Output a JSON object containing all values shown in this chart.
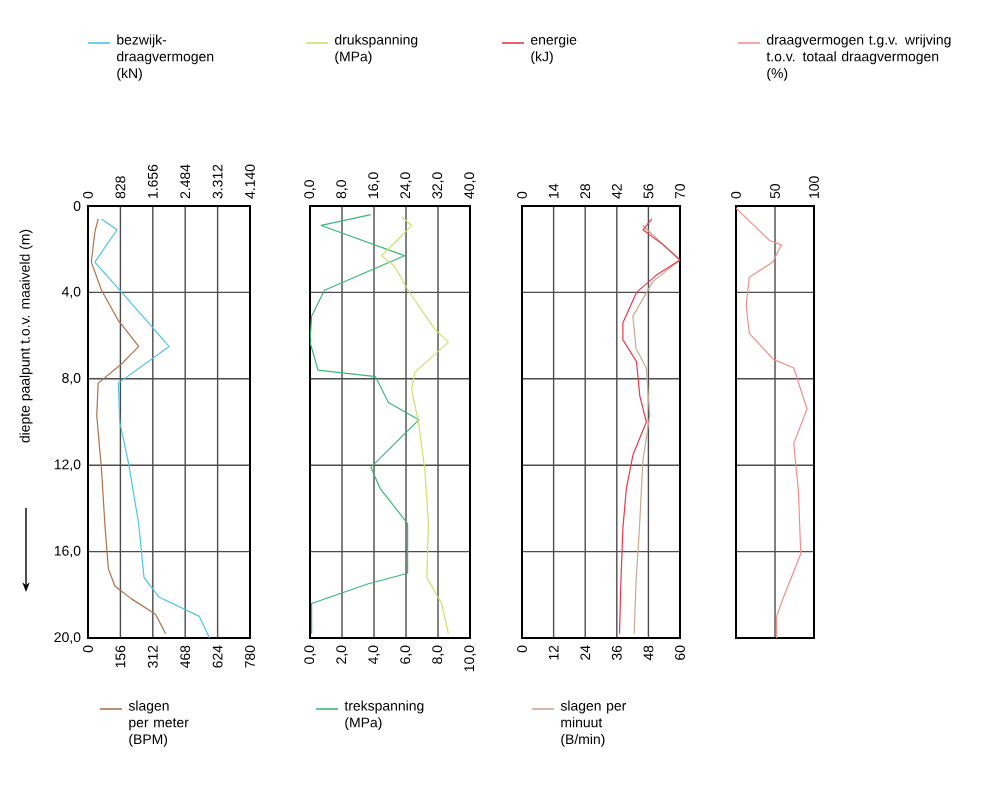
{
  "chart_data": [
    {
      "type": "line",
      "ylabel": "diepte paalpunt t.o.v. maaiveld (m)",
      "ylim": [
        20,
        0
      ],
      "yticks": [
        0,
        {
          "value": 4,
          "label": "4,0"
        },
        {
          "value": 8,
          "label": "8,0"
        },
        {
          "value": 12,
          "label": "12,0"
        },
        {
          "value": 16,
          "label": "16,0"
        },
        {
          "value": 20,
          "label": "20,0"
        }
      ],
      "xlim": [
        0,
        780
      ],
      "xticks": [
        0,
        156,
        312,
        468,
        624,
        780
      ],
      "x2lim": [
        0,
        4140
      ],
      "x2ticks": [
        0,
        828,
        {
          "value": 1656,
          "label": "1.656"
        },
        {
          "value": 2484,
          "label": "2.484"
        },
        {
          "value": 3312,
          "label": "3.312"
        },
        {
          "value": 4140,
          "label": "4.140"
        }
      ],
      "grid": true,
      "legend": "top",
      "series": [
        {
          "name": "bezwijk-draagvermogen (kN)",
          "color": "#4cc3ea",
          "axis": "x2",
          "x": [
            345,
            742,
            173,
            863,
            2070,
            776,
            811,
            1035,
            1294,
            1432,
            1811,
            2846,
            3105
          ],
          "values": [
            0.6,
            1.1,
            2.6,
            4.0,
            6.5,
            8.2,
            10.0,
            11.9,
            14.7,
            17.2,
            18.1,
            19.0,
            20.0
          ]
        },
        {
          "name": "slagen per meter (BPM)",
          "color": "#b0704a",
          "x": [
            49,
            33,
            16,
            65,
            146,
            244,
            163,
            49,
            42,
            65,
            81,
            98,
            130,
            211,
            325,
            374
          ],
          "values": [
            0.6,
            1.2,
            2.6,
            3.9,
            5.3,
            6.5,
            7.3,
            8.2,
            9.7,
            12.2,
            14.7,
            16.8,
            17.6,
            18.2,
            18.9,
            19.8
          ]
        }
      ]
    },
    {
      "type": "line",
      "ylim": [
        20,
        0
      ],
      "yticks": [
        0,
        4,
        8,
        12,
        16,
        20
      ],
      "tick_labels": "x",
      "xlim": [
        0,
        10
      ],
      "xticks": [
        {
          "value": 0,
          "label": "0,0"
        },
        {
          "value": 2,
          "label": "2,0"
        },
        {
          "value": 4,
          "label": "4,0"
        },
        {
          "value": 6,
          "label": "6,0"
        },
        {
          "value": 8,
          "label": "8,0"
        },
        {
          "value": 10,
          "label": "10,0"
        }
      ],
      "x2lim": [
        0,
        40
      ],
      "x2ticks": [
        {
          "value": 0,
          "label": "0,0"
        },
        {
          "value": 8,
          "label": "8,0"
        },
        {
          "value": 16,
          "label": "16,0"
        },
        {
          "value": 24,
          "label": "24,0"
        },
        {
          "value": 32,
          "label": "32,0"
        },
        {
          "value": 40,
          "label": "40,0"
        }
      ],
      "grid": true,
      "legend": "top",
      "series": [
        {
          "name": "drukspanning (MPa)",
          "color": "#d4dc6c",
          "axis": "x2",
          "x": [
            22.9,
            25.4,
            21.2,
            17.9,
            21.2,
            24.5,
            31.2,
            34.6,
            26.2,
            25.4,
            27.1,
            28.7,
            29.6,
            29.2,
            32.9,
            34.6
          ],
          "values": [
            0.5,
            0.9,
            1.7,
            2.3,
            2.8,
            3.9,
            5.7,
            6.3,
            7.7,
            8.5,
            10.0,
            12.2,
            14.7,
            17.2,
            18.4,
            19.8
          ]
        },
        {
          "name": "trekspanning (MPa)",
          "color": "#3cb878",
          "x": [
            3.8,
            0.7,
            5.9,
            0.9,
            0.1,
            0,
            0.5,
            4.1,
            4.9,
            6.8,
            5.7,
            3.8,
            4.4,
            6.1,
            6.1,
            3.6,
            0.1,
            0.1
          ],
          "values": [
            0.4,
            0.9,
            2.3,
            3.9,
            5.1,
            6.3,
            7.6,
            7.9,
            9.1,
            9.9,
            10.7,
            12.1,
            13.1,
            14.7,
            17.0,
            17.5,
            18.4,
            19.8
          ]
        }
      ]
    },
    {
      "type": "line",
      "ylim": [
        20,
        0
      ],
      "yticks": [
        0,
        4,
        8,
        12,
        16,
        20
      ],
      "tick_labels": "x",
      "xlim": [
        0,
        60
      ],
      "xticks": [
        0,
        12,
        24,
        36,
        48,
        60
      ],
      "x2lim": [
        0,
        70
      ],
      "x2ticks": [
        0,
        14,
        28,
        42,
        56,
        70
      ],
      "grid": true,
      "legend": "top",
      "series": [
        {
          "name": "energie (kJ)",
          "color": "#e8384a",
          "axis": "x2",
          "x": [
            57.5,
            53.6,
            62.6,
            70,
            59.6,
            50.7,
            44.7,
            44.7,
            50.7,
            52.2,
            55.1,
            49.2,
            46.2,
            44.7,
            43.8,
            43.2
          ],
          "values": [
            0.6,
            1.1,
            1.8,
            2.5,
            3.2,
            4.0,
            5.4,
            6.2,
            7.2,
            8.8,
            10.0,
            11.5,
            13.1,
            14.9,
            17.4,
            19.8
          ]
        },
        {
          "name": "slagen per minuut (B/min)",
          "color": "#c8a890",
          "x": [
            45.9,
            59.9,
            49.7,
            42.1,
            43.3,
            47.2,
            48.5,
            45.9,
            44.6,
            43.3,
            42.6
          ],
          "values": [
            0.9,
            2.5,
            3.5,
            5.1,
            6.6,
            7.5,
            9.7,
            11.8,
            14.9,
            17.4,
            19.8
          ]
        }
      ]
    },
    {
      "type": "line",
      "ylim": [
        20,
        0
      ],
      "yticks": [
        0,
        4,
        8,
        12,
        16,
        20
      ],
      "tick_labels": "x",
      "xlim": [
        0,
        100
      ],
      "xticks": [
        0,
        50,
        100
      ],
      "grid": true,
      "legend": "top",
      "series": [
        {
          "name": "draagvermogen t.g.v. wrijving t.o.v. totaal draagvermogen (%)",
          "color": "#f0908c",
          "x": [
            0,
            26,
            43,
            58,
            47,
            17,
            13,
            17,
            48,
            74,
            91,
            74,
            80,
            83,
            61,
            52,
            52
          ],
          "values": [
            0.1,
            1.0,
            1.6,
            1.8,
            2.6,
            3.3,
            4.6,
            5.9,
            7.1,
            7.5,
            9.4,
            11.0,
            13.2,
            16.1,
            18.1,
            19.0,
            20
          ]
        }
      ]
    }
  ]
}
